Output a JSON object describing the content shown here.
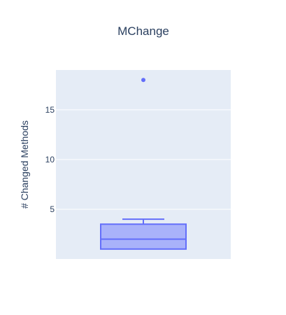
{
  "chart_data": {
    "type": "box",
    "title": "MChange",
    "xlabel": "",
    "ylabel": "# Changed Methods",
    "ylim": [
      0,
      19
    ],
    "yticks": [
      5,
      10,
      15
    ],
    "ytick_labels": [
      "5",
      "10",
      "15"
    ],
    "grid": true,
    "legend": "none",
    "series": [
      {
        "min": 1,
        "q1": 1,
        "median": 2,
        "q3": 3.5,
        "upper_fence": 4,
        "outliers": [
          18
        ]
      }
    ]
  },
  "colors": {
    "plot_background": "#e5ecf6",
    "grid": "#ffffff",
    "box_fill": "#a9b2fa",
    "box_line": "#636efa",
    "text": "#2a3f5f"
  }
}
